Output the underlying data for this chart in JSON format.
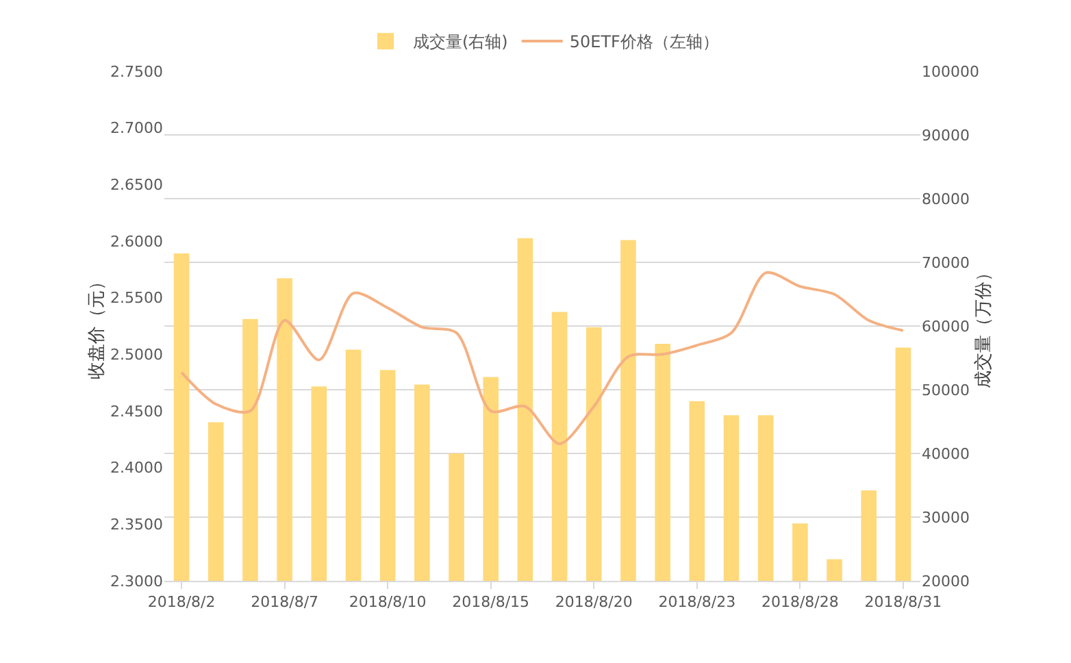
{
  "chart_data": {
    "type": "bar",
    "categories": [
      "2018/8/2",
      null,
      null,
      "2018/8/7",
      null,
      null,
      "2018/8/10",
      null,
      null,
      "2018/8/15",
      null,
      null,
      "2018/8/20",
      null,
      null,
      "2018/8/23",
      null,
      null,
      "2018/8/28",
      null,
      null,
      "2018/8/31"
    ],
    "series": [
      {
        "name": "成交量(右轴)",
        "axis": "y2",
        "color": "#ffd97a",
        "values": [
          71400,
          44900,
          61100,
          67500,
          50500,
          56300,
          53100,
          50800,
          40000,
          52000,
          73800,
          62200,
          59800,
          73500,
          57200,
          48200,
          46000,
          46000,
          29000,
          23400,
          34200,
          56600
        ]
      },
      {
        "name": "50ETF价格（左轴）",
        "type": "line",
        "color": "#f4b183",
        "values": [
          2.484,
          2.456,
          2.45,
          2.53,
          2.495,
          2.554,
          2.541,
          2.524,
          2.519,
          2.45,
          2.454,
          2.421,
          2.454,
          2.498,
          2.5,
          2.508,
          2.519,
          2.572,
          2.56,
          2.553,
          2.53,
          2.521
        ]
      }
    ],
    "ylabel": "收盘价（元）",
    "y2label": "成交量（万份）",
    "ylim": [
      2.3,
      2.75
    ],
    "yticks": [
      {
        "value": 2.3,
        "label": "2.3000"
      },
      {
        "value": 2.35,
        "label": "2.3500"
      },
      {
        "value": 2.4,
        "label": "2.4000"
      },
      {
        "value": 2.45,
        "label": "2.4500"
      },
      {
        "value": 2.5,
        "label": "2.5000"
      },
      {
        "value": 2.55,
        "label": "2.5500"
      },
      {
        "value": 2.6,
        "label": "2.6000"
      },
      {
        "value": 2.65,
        "label": "2.6500"
      },
      {
        "value": 2.7,
        "label": "2.7000"
      },
      {
        "value": 2.75,
        "label": "2.7500"
      }
    ],
    "y2lim": [
      20000,
      100000
    ],
    "y2ticks": [
      20000,
      30000,
      40000,
      50000,
      60000,
      70000,
      80000,
      90000,
      100000
    ],
    "grid": "y",
    "legend": "top",
    "marker": "none",
    "line_style": "solid"
  }
}
